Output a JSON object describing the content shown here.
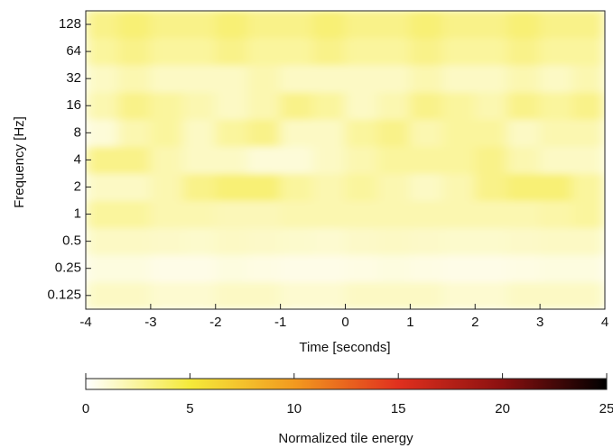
{
  "chart_data": {
    "type": "heatmap",
    "xlabel": "Time [seconds]",
    "ylabel": "Frequency [Hz]",
    "colorbar_label": "Normalized tile energy",
    "x": [
      -3.75,
      -3.25,
      -2.75,
      -2.25,
      -1.75,
      -1.25,
      -0.75,
      -0.25,
      0.25,
      0.75,
      1.25,
      1.75,
      2.25,
      2.75,
      3.25,
      3.75
    ],
    "y": [
      0.125,
      0.25,
      0.5,
      1,
      2,
      4,
      8,
      16,
      32,
      64,
      128
    ],
    "z": [
      [
        1.5,
        1.5,
        1.2,
        1.2,
        1.5,
        1.5,
        1.2,
        1.2,
        1.5,
        1.5,
        1.5,
        1.2,
        1.2,
        1.5,
        1.5,
        1.5
      ],
      [
        0.8,
        0.8,
        0.6,
        0.6,
        0.8,
        0.7,
        0.6,
        0.6,
        0.7,
        0.8,
        0.7,
        0.6,
        0.6,
        0.7,
        0.8,
        0.8
      ],
      [
        1.5,
        1.5,
        1.4,
        1.3,
        1.5,
        1.4,
        1.3,
        1.2,
        1.4,
        1.5,
        1.4,
        1.3,
        1.3,
        1.4,
        1.5,
        1.5
      ],
      [
        2.5,
        2.5,
        2,
        2,
        1.8,
        1.8,
        2,
        2,
        2,
        2,
        2,
        2,
        2,
        2,
        2.2,
        2.5
      ],
      [
        1.5,
        1.5,
        2,
        3,
        3.5,
        3.5,
        2.5,
        2,
        2.5,
        2,
        1.5,
        2,
        3,
        3.5,
        3.5,
        2.5
      ],
      [
        3,
        3,
        2,
        1.5,
        1.5,
        1,
        1,
        1.5,
        2,
        2.5,
        2.5,
        2.5,
        3,
        2,
        1.5,
        1.5
      ],
      [
        1,
        2,
        2.5,
        1.5,
        2.5,
        3,
        1.5,
        1.5,
        2.5,
        3,
        2,
        2.5,
        2.5,
        1.5,
        2,
        2
      ],
      [
        2,
        3,
        2.5,
        2,
        1.5,
        2,
        3,
        2.5,
        1.5,
        2,
        3,
        2.5,
        2,
        3,
        2.5,
        3
      ],
      [
        1.5,
        2,
        1.5,
        1.5,
        1.5,
        2,
        1.5,
        1.5,
        1.5,
        1.5,
        2,
        1.5,
        1.5,
        2,
        1.5,
        2
      ],
      [
        2.5,
        3,
        2.5,
        2.5,
        3,
        2.5,
        2.5,
        3,
        2.5,
        2.5,
        3,
        2.5,
        2.5,
        3,
        2.5,
        2.5
      ],
      [
        3,
        3.5,
        3,
        3,
        3.5,
        3,
        3,
        3.5,
        3,
        3,
        3.5,
        3,
        3,
        3.5,
        3,
        3
      ]
    ],
    "xlim": [
      -4,
      4
    ],
    "xticks": [
      -4,
      -3,
      -2,
      -1,
      0,
      1,
      2,
      3,
      4
    ],
    "ylim": [
      0.088,
      181
    ],
    "log_y": true,
    "yticks": [
      0.125,
      0.25,
      0.5,
      1,
      2,
      4,
      8,
      16,
      32,
      64,
      128
    ],
    "clim": [
      0,
      25
    ],
    "cticks": [
      0,
      5,
      10,
      15,
      20,
      25
    ],
    "colormap": [
      "#ffffff",
      "#f5ea3a",
      "#f29a1f",
      "#e0301e",
      "#8a1010",
      "#000000"
    ]
  }
}
